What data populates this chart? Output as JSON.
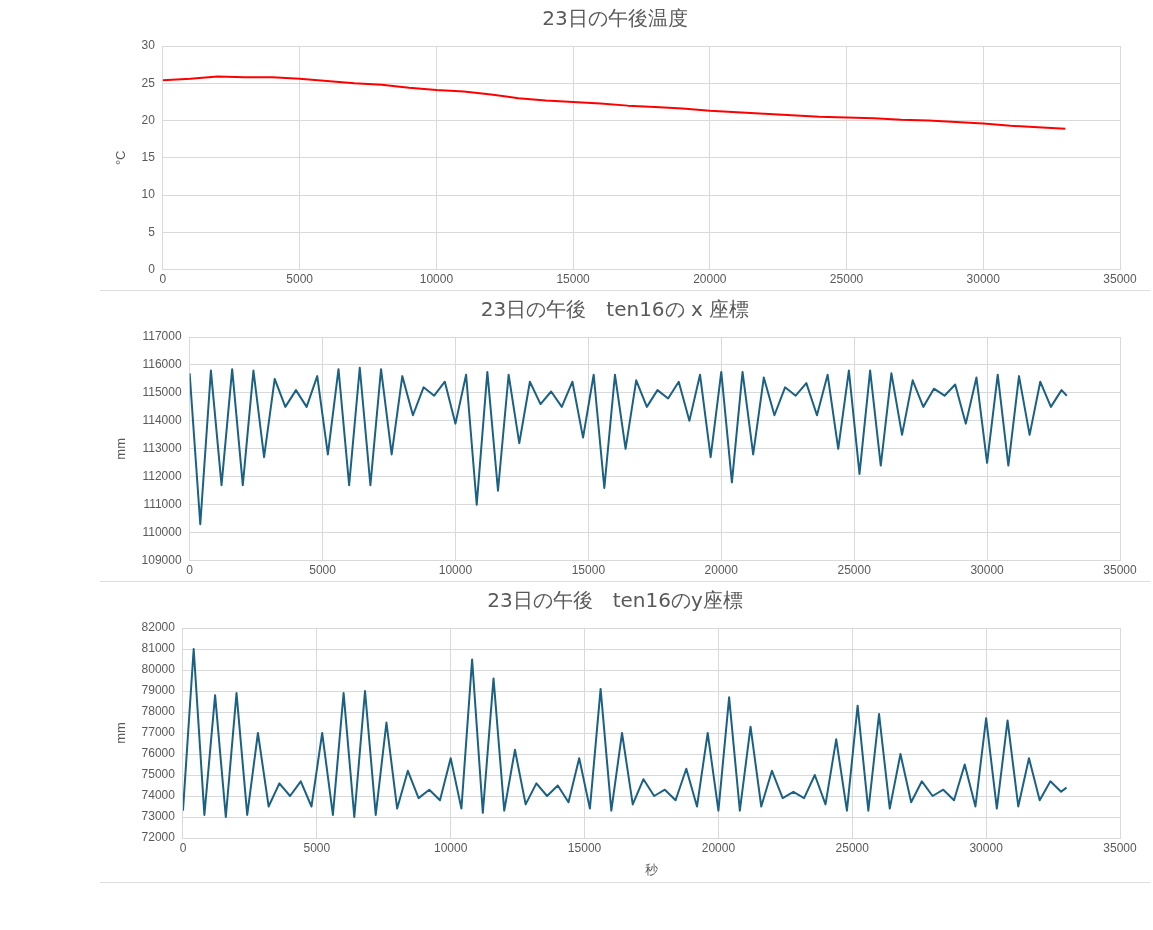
{
  "chart_data": [
    {
      "type": "line",
      "title": "23日の午後温度",
      "ylabel": "°C",
      "marker": "none",
      "grid": true,
      "legend": false,
      "xlim": [
        0,
        35000
      ],
      "xticks": [
        0,
        5000,
        10000,
        15000,
        20000,
        25000,
        30000,
        35000
      ],
      "ylim": [
        0,
        30
      ],
      "yticks": [
        0,
        5,
        10,
        15,
        20,
        25,
        30
      ],
      "x": [
        0,
        1000,
        2000,
        3000,
        4000,
        5000,
        6000,
        7000,
        8000,
        9000,
        10000,
        11000,
        12000,
        13000,
        14000,
        15000,
        16000,
        17000,
        18000,
        19000,
        20000,
        21000,
        22000,
        23000,
        24000,
        25000,
        26000,
        27000,
        28000,
        29000,
        30000,
        31000,
        32000,
        33000
      ],
      "series": [
        {
          "color": "#ff0000",
          "values": [
            25.4,
            25.6,
            25.9,
            25.8,
            25.8,
            25.6,
            25.3,
            25.0,
            24.8,
            24.4,
            24.1,
            23.9,
            23.5,
            23.0,
            22.7,
            22.5,
            22.3,
            22.0,
            21.8,
            21.6,
            21.3,
            21.1,
            20.9,
            20.7,
            20.5,
            20.4,
            20.3,
            20.1,
            20.0,
            19.8,
            19.6,
            19.3,
            19.1,
            18.9
          ]
        }
      ]
    },
    {
      "type": "line",
      "title": "23日の午後　ten16の x 座標",
      "ylabel": "mm",
      "marker": "none",
      "grid": true,
      "legend": false,
      "xlim": [
        0,
        35000
      ],
      "xticks": [
        0,
        5000,
        10000,
        15000,
        20000,
        25000,
        30000,
        35000
      ],
      "ylim": [
        109000,
        117000
      ],
      "yticks": [
        109000,
        110000,
        111000,
        112000,
        113000,
        114000,
        115000,
        116000,
        117000
      ],
      "x": [
        0,
        400,
        800,
        1200,
        1600,
        2000,
        2400,
        2800,
        3200,
        3600,
        4000,
        4400,
        4800,
        5200,
        5600,
        6000,
        6400,
        6800,
        7200,
        7600,
        8000,
        8400,
        8800,
        9200,
        9600,
        10000,
        10400,
        10800,
        11200,
        11600,
        12000,
        12400,
        12800,
        13200,
        13600,
        14000,
        14400,
        14800,
        15200,
        15600,
        16000,
        16400,
        16800,
        17200,
        17600,
        18000,
        18400,
        18800,
        19200,
        19600,
        20000,
        20400,
        20800,
        21200,
        21600,
        22000,
        22400,
        22800,
        23200,
        23600,
        24000,
        24400,
        24800,
        25200,
        25600,
        26000,
        26400,
        26800,
        27200,
        27600,
        28000,
        28400,
        28800,
        29200,
        29600,
        30000,
        30400,
        30800,
        31200,
        31600,
        32000,
        32400,
        32800,
        33000
      ],
      "series": [
        {
          "color": "#1b6183",
          "values": [
            115700,
            110300,
            115800,
            111700,
            115850,
            111700,
            115800,
            112700,
            115500,
            114500,
            115100,
            114500,
            115600,
            112800,
            115850,
            111700,
            115900,
            111700,
            115850,
            112800,
            115600,
            114200,
            115200,
            114900,
            115400,
            113900,
            115650,
            111000,
            115750,
            111500,
            115650,
            113200,
            115400,
            114600,
            115050,
            114500,
            115400,
            113400,
            115650,
            111600,
            115650,
            113000,
            115450,
            114500,
            115100,
            114800,
            115400,
            114000,
            115650,
            112700,
            115750,
            111800,
            115750,
            112800,
            115550,
            114200,
            115200,
            114900,
            115350,
            114200,
            115650,
            113000,
            115800,
            112100,
            115800,
            112400,
            115700,
            113500,
            115450,
            114500,
            115150,
            114900,
            115300,
            113900,
            115550,
            112500,
            115650,
            112400,
            115600,
            113500,
            115400,
            114500,
            115100,
            114900
          ]
        }
      ]
    },
    {
      "type": "line",
      "title": "23日の午後　ten16のy座標",
      "xlabel": "秒",
      "ylabel": "mm",
      "marker": "none",
      "grid": true,
      "legend": false,
      "xlim": [
        0,
        35000
      ],
      "xticks": [
        0,
        5000,
        10000,
        15000,
        20000,
        25000,
        30000,
        35000
      ],
      "ylim": [
        72000,
        82000
      ],
      "yticks": [
        72000,
        73000,
        74000,
        75000,
        76000,
        77000,
        78000,
        79000,
        80000,
        81000,
        82000
      ],
      "x": [
        0,
        400,
        800,
        1200,
        1600,
        2000,
        2400,
        2800,
        3200,
        3600,
        4000,
        4400,
        4800,
        5200,
        5600,
        6000,
        6400,
        6800,
        7200,
        7600,
        8000,
        8400,
        8800,
        9200,
        9600,
        10000,
        10400,
        10800,
        11200,
        11600,
        12000,
        12400,
        12800,
        13200,
        13600,
        14000,
        14400,
        14800,
        15200,
        15600,
        16000,
        16400,
        16800,
        17200,
        17600,
        18000,
        18400,
        18800,
        19200,
        19600,
        20000,
        20400,
        20800,
        21200,
        21600,
        22000,
        22400,
        22800,
        23200,
        23600,
        24000,
        24400,
        24800,
        25200,
        25600,
        26000,
        26400,
        26800,
        27200,
        27600,
        28000,
        28400,
        28800,
        29200,
        29600,
        30000,
        30400,
        30800,
        31200,
        31600,
        32000,
        32400,
        32800,
        33000
      ],
      "series": [
        {
          "color": "#1b6183",
          "values": [
            73300,
            81000,
            73100,
            78800,
            73000,
            78900,
            73100,
            77000,
            73500,
            74600,
            74000,
            74700,
            73500,
            77000,
            73100,
            78900,
            73000,
            79000,
            73100,
            77500,
            73400,
            75200,
            73900,
            74300,
            73800,
            75800,
            73400,
            80500,
            73200,
            79600,
            73300,
            76200,
            73600,
            74600,
            74000,
            74500,
            73700,
            75800,
            73400,
            79100,
            73300,
            77000,
            73600,
            74800,
            74000,
            74300,
            73800,
            75300,
            73500,
            77000,
            73300,
            78700,
            73300,
            77300,
            73500,
            75200,
            73900,
            74200,
            73900,
            75000,
            73600,
            76700,
            73300,
            78300,
            73300,
            77900,
            73400,
            76000,
            73700,
            74700,
            74000,
            74300,
            73800,
            75500,
            73500,
            77700,
            73400,
            77600,
            73500,
            75800,
            73800,
            74700,
            74200,
            74400
          ]
        }
      ]
    }
  ]
}
